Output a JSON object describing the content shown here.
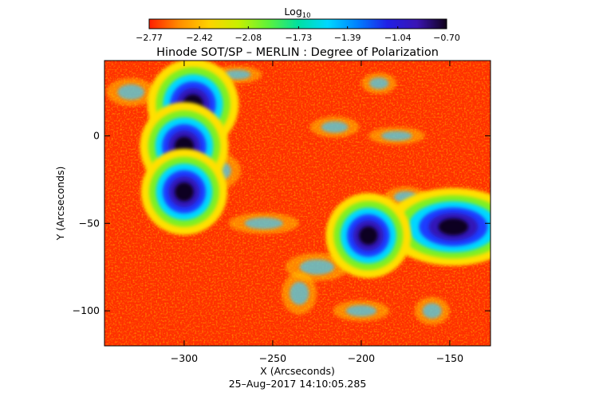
{
  "chart_data": {
    "type": "heatmap",
    "title": "Hinode SOT/SP – MERLIN : Degree of Polarization",
    "xlabel": "X (Arcseconds)",
    "ylabel": "Y (Arcseconds)",
    "timestamp": "25–Aug–2017 14:10:05.285",
    "xlim": [
      -345,
      -127
    ],
    "ylim": [
      -120,
      43
    ],
    "x_ticks": [
      -300,
      -250,
      -200,
      -150
    ],
    "x_tick_labels": [
      "−300",
      "−250",
      "−200",
      "−150"
    ],
    "y_ticks": [
      0,
      -50,
      -100
    ],
    "y_tick_labels": [
      "0",
      "−50",
      "−100"
    ],
    "colorbar": {
      "label_prefix": "Log",
      "label_subscript": "10",
      "min": -2.77,
      "max": -0.7,
      "tick_values": [
        -2.77,
        -2.42,
        -2.08,
        -1.73,
        -1.39,
        -1.04,
        -0.7
      ],
      "tick_labels": [
        "−2.77",
        "−2.42",
        "−2.08",
        "−1.73",
        "−1.39",
        "−1.04",
        "−0.70"
      ],
      "colormap": [
        "#ff1f00",
        "#ff8c00",
        "#ffd200",
        "#c8f000",
        "#5ef23a",
        "#00e0a0",
        "#00d8ff",
        "#0080ff",
        "#2020e6",
        "#3a14b4",
        "#100018"
      ]
    },
    "concentrations": [
      {
        "x": -295,
        "y": 18,
        "log_pol": -0.72
      },
      {
        "x": -300,
        "y": -6,
        "log_pol": -0.85
      },
      {
        "x": -300,
        "y": -32,
        "log_pol": -0.95
      },
      {
        "x": -148,
        "y": -52,
        "log_pol": -0.72
      },
      {
        "x": -196,
        "y": -57,
        "log_pol": -1.0
      }
    ],
    "background_log_pol": -2.7
  }
}
